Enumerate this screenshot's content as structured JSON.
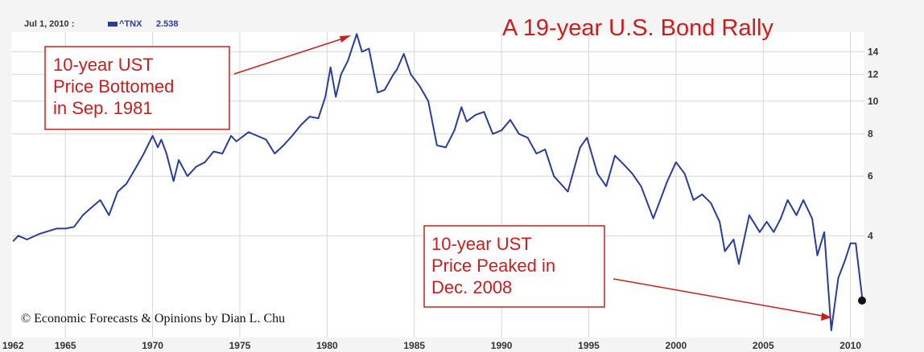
{
  "chart_data": {
    "type": "line",
    "title": "A 19-year U.S. Bond Rally",
    "header": {
      "date": "Jul 1, 2010 :",
      "series_label": "^TNX",
      "last_value": "2.538"
    },
    "y_scale": "log",
    "ylim": [
      2.0,
      16.0
    ],
    "xlim": [
      1961.9,
      2010.8
    ],
    "y_ticks": [
      4,
      6,
      8,
      10,
      12,
      14
    ],
    "x_ticks": [
      1962,
      1965,
      1970,
      1975,
      1980,
      1985,
      1990,
      1995,
      2000,
      2005,
      2010
    ],
    "grid": true,
    "series": [
      {
        "name": "^TNX",
        "color": "#2a3c9c",
        "points": [
          [
            1962.0,
            3.85
          ],
          [
            1962.3,
            4.0
          ],
          [
            1962.8,
            3.9
          ],
          [
            1963.5,
            4.05
          ],
          [
            1964.5,
            4.2
          ],
          [
            1965.0,
            4.2
          ],
          [
            1965.5,
            4.25
          ],
          [
            1966.0,
            4.6
          ],
          [
            1966.5,
            4.85
          ],
          [
            1967.0,
            5.1
          ],
          [
            1967.5,
            4.6
          ],
          [
            1968.0,
            5.4
          ],
          [
            1968.5,
            5.7
          ],
          [
            1969.0,
            6.3
          ],
          [
            1969.5,
            7.0
          ],
          [
            1970.0,
            7.9
          ],
          [
            1970.3,
            7.3
          ],
          [
            1970.5,
            7.7
          ],
          [
            1970.8,
            7.0
          ],
          [
            1971.2,
            5.8
          ],
          [
            1971.5,
            6.7
          ],
          [
            1972.0,
            6.0
          ],
          [
            1972.5,
            6.4
          ],
          [
            1973.0,
            6.6
          ],
          [
            1973.5,
            7.1
          ],
          [
            1974.0,
            7.0
          ],
          [
            1974.5,
            7.9
          ],
          [
            1974.8,
            7.6
          ],
          [
            1975.5,
            8.1
          ],
          [
            1976.0,
            7.9
          ],
          [
            1976.5,
            7.7
          ],
          [
            1977.0,
            7.0
          ],
          [
            1977.5,
            7.4
          ],
          [
            1978.0,
            7.9
          ],
          [
            1978.5,
            8.5
          ],
          [
            1979.0,
            9.0
          ],
          [
            1979.5,
            8.9
          ],
          [
            1979.9,
            10.3
          ],
          [
            1980.2,
            12.6
          ],
          [
            1980.5,
            10.3
          ],
          [
            1980.8,
            12.0
          ],
          [
            1981.2,
            13.2
          ],
          [
            1981.7,
            15.8
          ],
          [
            1982.0,
            14.0
          ],
          [
            1982.4,
            14.3
          ],
          [
            1982.9,
            10.6
          ],
          [
            1983.3,
            10.8
          ],
          [
            1983.8,
            12.0
          ],
          [
            1984.0,
            12.4
          ],
          [
            1984.4,
            13.8
          ],
          [
            1984.8,
            12.0
          ],
          [
            1985.3,
            11.1
          ],
          [
            1985.8,
            10.0
          ],
          [
            1986.3,
            7.4
          ],
          [
            1986.8,
            7.3
          ],
          [
            1987.3,
            8.2
          ],
          [
            1987.7,
            9.6
          ],
          [
            1988.0,
            8.7
          ],
          [
            1988.5,
            9.1
          ],
          [
            1989.0,
            9.3
          ],
          [
            1989.5,
            8.0
          ],
          [
            1990.0,
            8.2
          ],
          [
            1990.5,
            8.8
          ],
          [
            1991.0,
            8.0
          ],
          [
            1991.5,
            7.8
          ],
          [
            1992.0,
            7.0
          ],
          [
            1992.5,
            7.2
          ],
          [
            1993.0,
            6.0
          ],
          [
            1993.8,
            5.4
          ],
          [
            1994.5,
            7.3
          ],
          [
            1994.9,
            7.8
          ],
          [
            1995.5,
            6.1
          ],
          [
            1996.0,
            5.6
          ],
          [
            1996.5,
            6.9
          ],
          [
            1997.0,
            6.5
          ],
          [
            1997.5,
            6.1
          ],
          [
            1998.0,
            5.6
          ],
          [
            1998.7,
            4.5
          ],
          [
            1999.5,
            5.8
          ],
          [
            2000.0,
            6.6
          ],
          [
            2000.5,
            6.1
          ],
          [
            2001.0,
            5.1
          ],
          [
            2001.5,
            5.3
          ],
          [
            2002.0,
            5.0
          ],
          [
            2002.5,
            4.4
          ],
          [
            2002.8,
            3.6
          ],
          [
            2003.3,
            3.9
          ],
          [
            2003.6,
            3.3
          ],
          [
            2004.2,
            4.6
          ],
          [
            2004.8,
            4.1
          ],
          [
            2005.2,
            4.4
          ],
          [
            2005.6,
            4.1
          ],
          [
            2006.0,
            4.5
          ],
          [
            2006.4,
            5.1
          ],
          [
            2006.9,
            4.6
          ],
          [
            2007.3,
            5.1
          ],
          [
            2007.8,
            4.5
          ],
          [
            2008.1,
            3.5
          ],
          [
            2008.5,
            4.1
          ],
          [
            2008.9,
            2.1
          ],
          [
            2009.3,
            3.0
          ],
          [
            2009.7,
            3.4
          ],
          [
            2010.0,
            3.8
          ],
          [
            2010.3,
            3.8
          ],
          [
            2010.7,
            2.55
          ]
        ]
      }
    ],
    "annotations": [
      {
        "id": "bottom",
        "lines": [
          "10-year UST",
          "Price Bottomed",
          "in Sep. 1981"
        ],
        "target": [
          1981.7,
          15.8
        ]
      },
      {
        "id": "peak",
        "lines": [
          "10-year UST",
          "Price Peaked in",
          "Dec. 2008"
        ],
        "target": [
          2008.9,
          2.1
        ]
      }
    ],
    "credit": "© Economic Forecasts & Opinions by Dian L. Chu",
    "colors": {
      "line": "#2a3c9c",
      "accent": "#c81e1e",
      "grid": "#d6d6d6",
      "plot_bg": "#ffffff",
      "frame_bg": "#f4f4f4"
    }
  }
}
